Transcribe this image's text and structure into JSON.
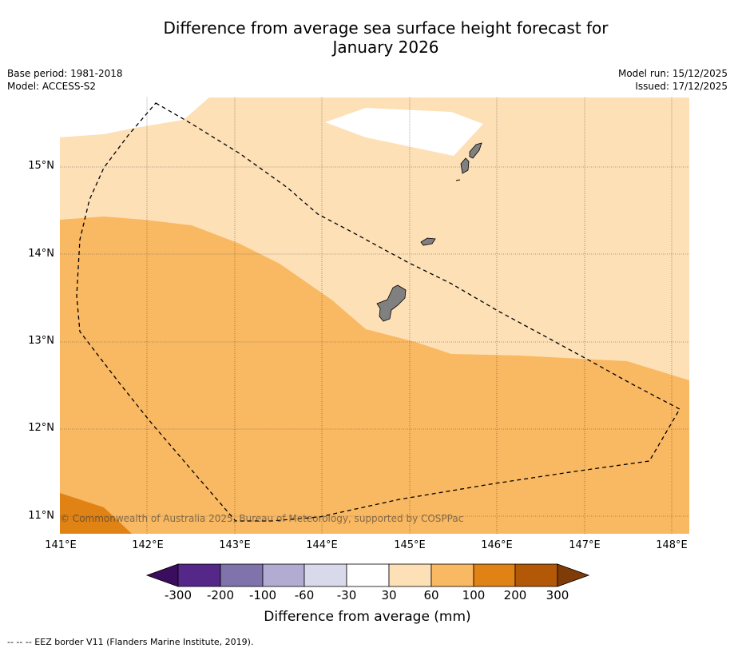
{
  "title_line1": "Difference from average sea surface height forecast for",
  "title_line2": "January 2026",
  "base_period": "Base period: 1981-2018",
  "model": "Model: ACCESS-S2",
  "model_run": "Model run: 15/12/2025",
  "issued": "Issued: 17/12/2025",
  "copyright": "© Commonwealth of Australia 2025, Bureau of Meteorology, supported by COSPPac",
  "footnote": "--  --  -- EEZ border V11 (Flanders Marine Institute, 2019).",
  "map": {
    "lon_ticks": [
      "141°E",
      "142°E",
      "143°E",
      "144°E",
      "145°E",
      "146°E",
      "147°E",
      "148°E"
    ],
    "lat_ticks": [
      "15°N",
      "14°N",
      "13°N",
      "12°N",
      "11°N"
    ],
    "lon_range": [
      141.0,
      148.2
    ],
    "lat_range": [
      10.8,
      15.8
    ]
  },
  "colorbar": {
    "title": "Difference from average (mm)",
    "labels": [
      "-300",
      "-200",
      "-100",
      "-60",
      "-30",
      "30",
      "60",
      "100",
      "200",
      "300"
    ],
    "colors": [
      "#3b0d5e",
      "#542788",
      "#8073ac",
      "#b2abd2",
      "#d8daeb",
      "#ffffff",
      "#fde0b6",
      "#f9b862",
      "#e08214",
      "#b35806",
      "#7f3b08"
    ]
  }
}
